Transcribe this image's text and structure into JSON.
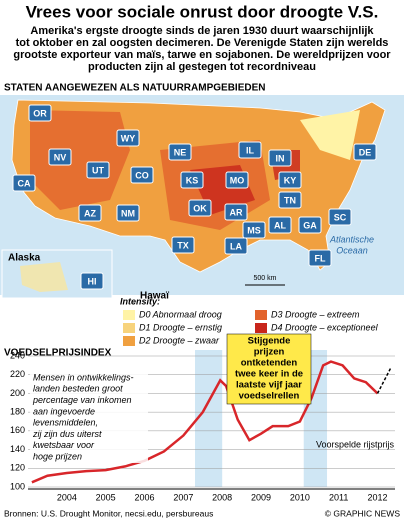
{
  "header": {
    "title": "Vrees voor sociale onrust door droogte V.S.",
    "subtitle": [
      "Amerika's ergste droogte sinds de jaren 1930 duurt waarschijnlijk",
      "tot oktober en zal oogsten decimeren. De Verenigde Staten zijn werelds",
      "grootste exporteur van maïs, tarwe en sojabonen. De wereldprijzen voor",
      "producten zijn al gestegen tot recordniveau"
    ]
  },
  "map": {
    "title": "STATEN AANGEWEZEN ALS NATUURRAMPGEBIEDEN",
    "states": [
      "OR",
      "WY",
      "NE",
      "IL",
      "IN",
      "DE",
      "NV",
      "UT",
      "CO",
      "KS",
      "MO",
      "KY",
      "CA",
      "OK",
      "AR",
      "TN",
      "SC",
      "AZ",
      "NM",
      "TX",
      "MS",
      "AL",
      "GA",
      "LA",
      "FL",
      "HI"
    ],
    "ocean": [
      "Atlantische",
      "Oceaan"
    ],
    "scale": "500 km",
    "alaska": "Alaska",
    "hawaii": "Hawaï",
    "legend_title": "Intensity:",
    "legend": [
      {
        "label": "D0 Abnormaal droog",
        "color": "#fff3a6"
      },
      {
        "label": "D1 Droogte – ernstig",
        "color": "#f7d37c"
      },
      {
        "label": "D2 Droogte – zwaar",
        "color": "#f0a040"
      },
      {
        "label": "D3 Droogte – extreem",
        "color": "#e2632c"
      },
      {
        "label": "D4 Droogte – exceptioneel",
        "color": "#c8261c"
      }
    ]
  },
  "chart_data": {
    "type": "line",
    "y_label": "VOEDSELPRIJSINDEX",
    "x": [
      2003.6,
      2004.0,
      2004.5,
      2005.0,
      2005.5,
      2006.0,
      2006.5,
      2007.0,
      2007.5,
      2008.0,
      2008.45,
      2008.6,
      2008.9,
      2009.2,
      2009.5,
      2009.8,
      2010.2,
      2010.5,
      2010.8,
      2011.1,
      2011.3,
      2011.6,
      2011.9,
      2012.2,
      2012.5,
      2012.85
    ],
    "series": [
      {
        "color": "#d8262a",
        "values": [
          105,
          112,
          115,
          117,
          118,
          122,
          128,
          138,
          155,
          180,
          214,
          208,
          172,
          150,
          157,
          165,
          165,
          170,
          195,
          230,
          234,
          230,
          216,
          212,
          200,
          null
        ]
      },
      {
        "name": "Voorspelde rijstprijs",
        "color": "#000000",
        "values": [
          null,
          null,
          null,
          null,
          null,
          null,
          null,
          null,
          null,
          null,
          null,
          null,
          null,
          null,
          null,
          null,
          null,
          null,
          null,
          null,
          null,
          null,
          null,
          null,
          200,
          228
        ]
      }
    ],
    "highlights": [
      [
        2007.8,
        2008.5
      ],
      [
        2010.6,
        2011.2
      ]
    ],
    "xlim": [
      2003.5,
      2012.95
    ],
    "xticks": [
      2004,
      2005,
      2006,
      2007,
      2008,
      2009,
      2010,
      2011,
      2012
    ],
    "ylim": [
      100,
      240
    ],
    "yticks": [
      100,
      120,
      140,
      160,
      180,
      200,
      220,
      240
    ],
    "grid": true,
    "note": [
      "Mensen in ontwikkelings-",
      "landen besteden groot",
      "percentage van inkomen",
      "aan ingevoerde",
      "levensmiddelen,",
      "zij zijn dus uiterst",
      "kwetsbaar voor",
      "hoge prijzen"
    ],
    "callout": [
      "Stijgende",
      "prijzen",
      "ontketenden",
      "twee keer in de",
      "laatste vijf jaar",
      "voedselrellen"
    ]
  },
  "footer": {
    "source": "Bronnen: U.S. Drought Monitor, necsi.edu, persbureaus",
    "credit": "© GRAPHIC NEWS"
  }
}
